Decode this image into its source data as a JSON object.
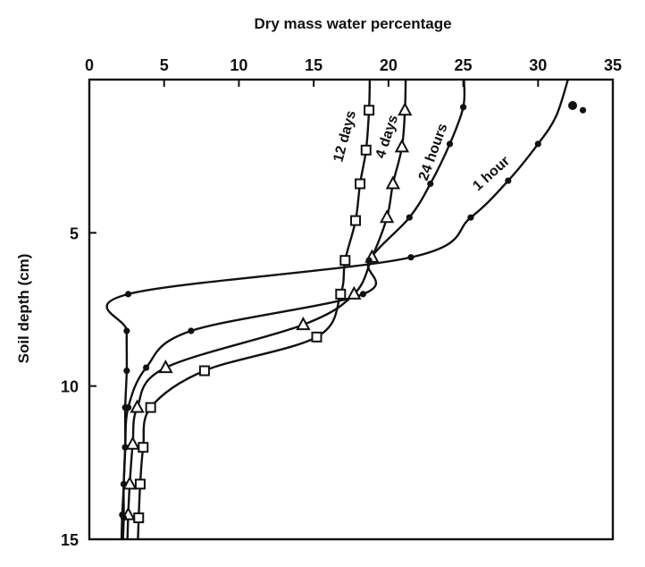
{
  "chart_data": {
    "type": "line",
    "title": "Dry mass water percentage",
    "xlabel": "Dry mass water percentage",
    "ylabel": "Soil depth (cm)",
    "xlim": [
      0,
      35
    ],
    "ylim": [
      0,
      15
    ],
    "y_inverted": true,
    "x_axis_position": "top",
    "grid": false,
    "legend": "none",
    "x_ticks": [
      0,
      5,
      10,
      15,
      20,
      25,
      30,
      35
    ],
    "y_ticks": [
      5,
      10,
      15
    ],
    "series": [
      {
        "name": "12 days",
        "marker": "square",
        "x": [
          18.7,
          18.5,
          18.1,
          17.8,
          17.1,
          16.8,
          15.2,
          7.7,
          4.1,
          3.6,
          3.4,
          3.3
        ],
        "y": [
          1.0,
          2.3,
          3.4,
          4.6,
          5.9,
          7.0,
          8.4,
          9.5,
          10.7,
          12.0,
          13.2,
          14.3
        ]
      },
      {
        "name": "4 days",
        "marker": "triangle",
        "x": [
          21.1,
          20.9,
          20.3,
          19.9,
          18.9,
          17.7,
          14.3,
          5.1,
          3.2,
          2.9,
          2.7,
          2.6
        ],
        "y": [
          1.0,
          2.2,
          3.4,
          4.5,
          5.8,
          7.0,
          8.0,
          9.4,
          10.7,
          11.9,
          13.2,
          14.2
        ]
      },
      {
        "name": "24 hours",
        "marker": "dot",
        "x": [
          25.0,
          24.1,
          22.8,
          21.4,
          18.7,
          18.3,
          6.8,
          3.8,
          2.6,
          2.4,
          2.3,
          2.2
        ],
        "y": [
          0.9,
          2.1,
          3.4,
          4.5,
          5.9,
          7.0,
          8.2,
          9.4,
          10.7,
          12.0,
          13.2,
          14.2
        ]
      },
      {
        "name": "1 hour",
        "marker": "dot",
        "x": [
          33.0,
          30.0,
          28.0,
          25.5,
          21.5,
          2.6,
          2.5,
          2.5,
          2.4,
          2.4,
          2.3,
          2.3
        ],
        "y": [
          1.0,
          2.1,
          3.3,
          4.5,
          5.8,
          7.0,
          8.2,
          9.5,
          10.7,
          12.0,
          13.2,
          14.3
        ]
      }
    ],
    "annotations": [
      "12 days",
      "4 days",
      "24 hours",
      "1 hour"
    ]
  }
}
